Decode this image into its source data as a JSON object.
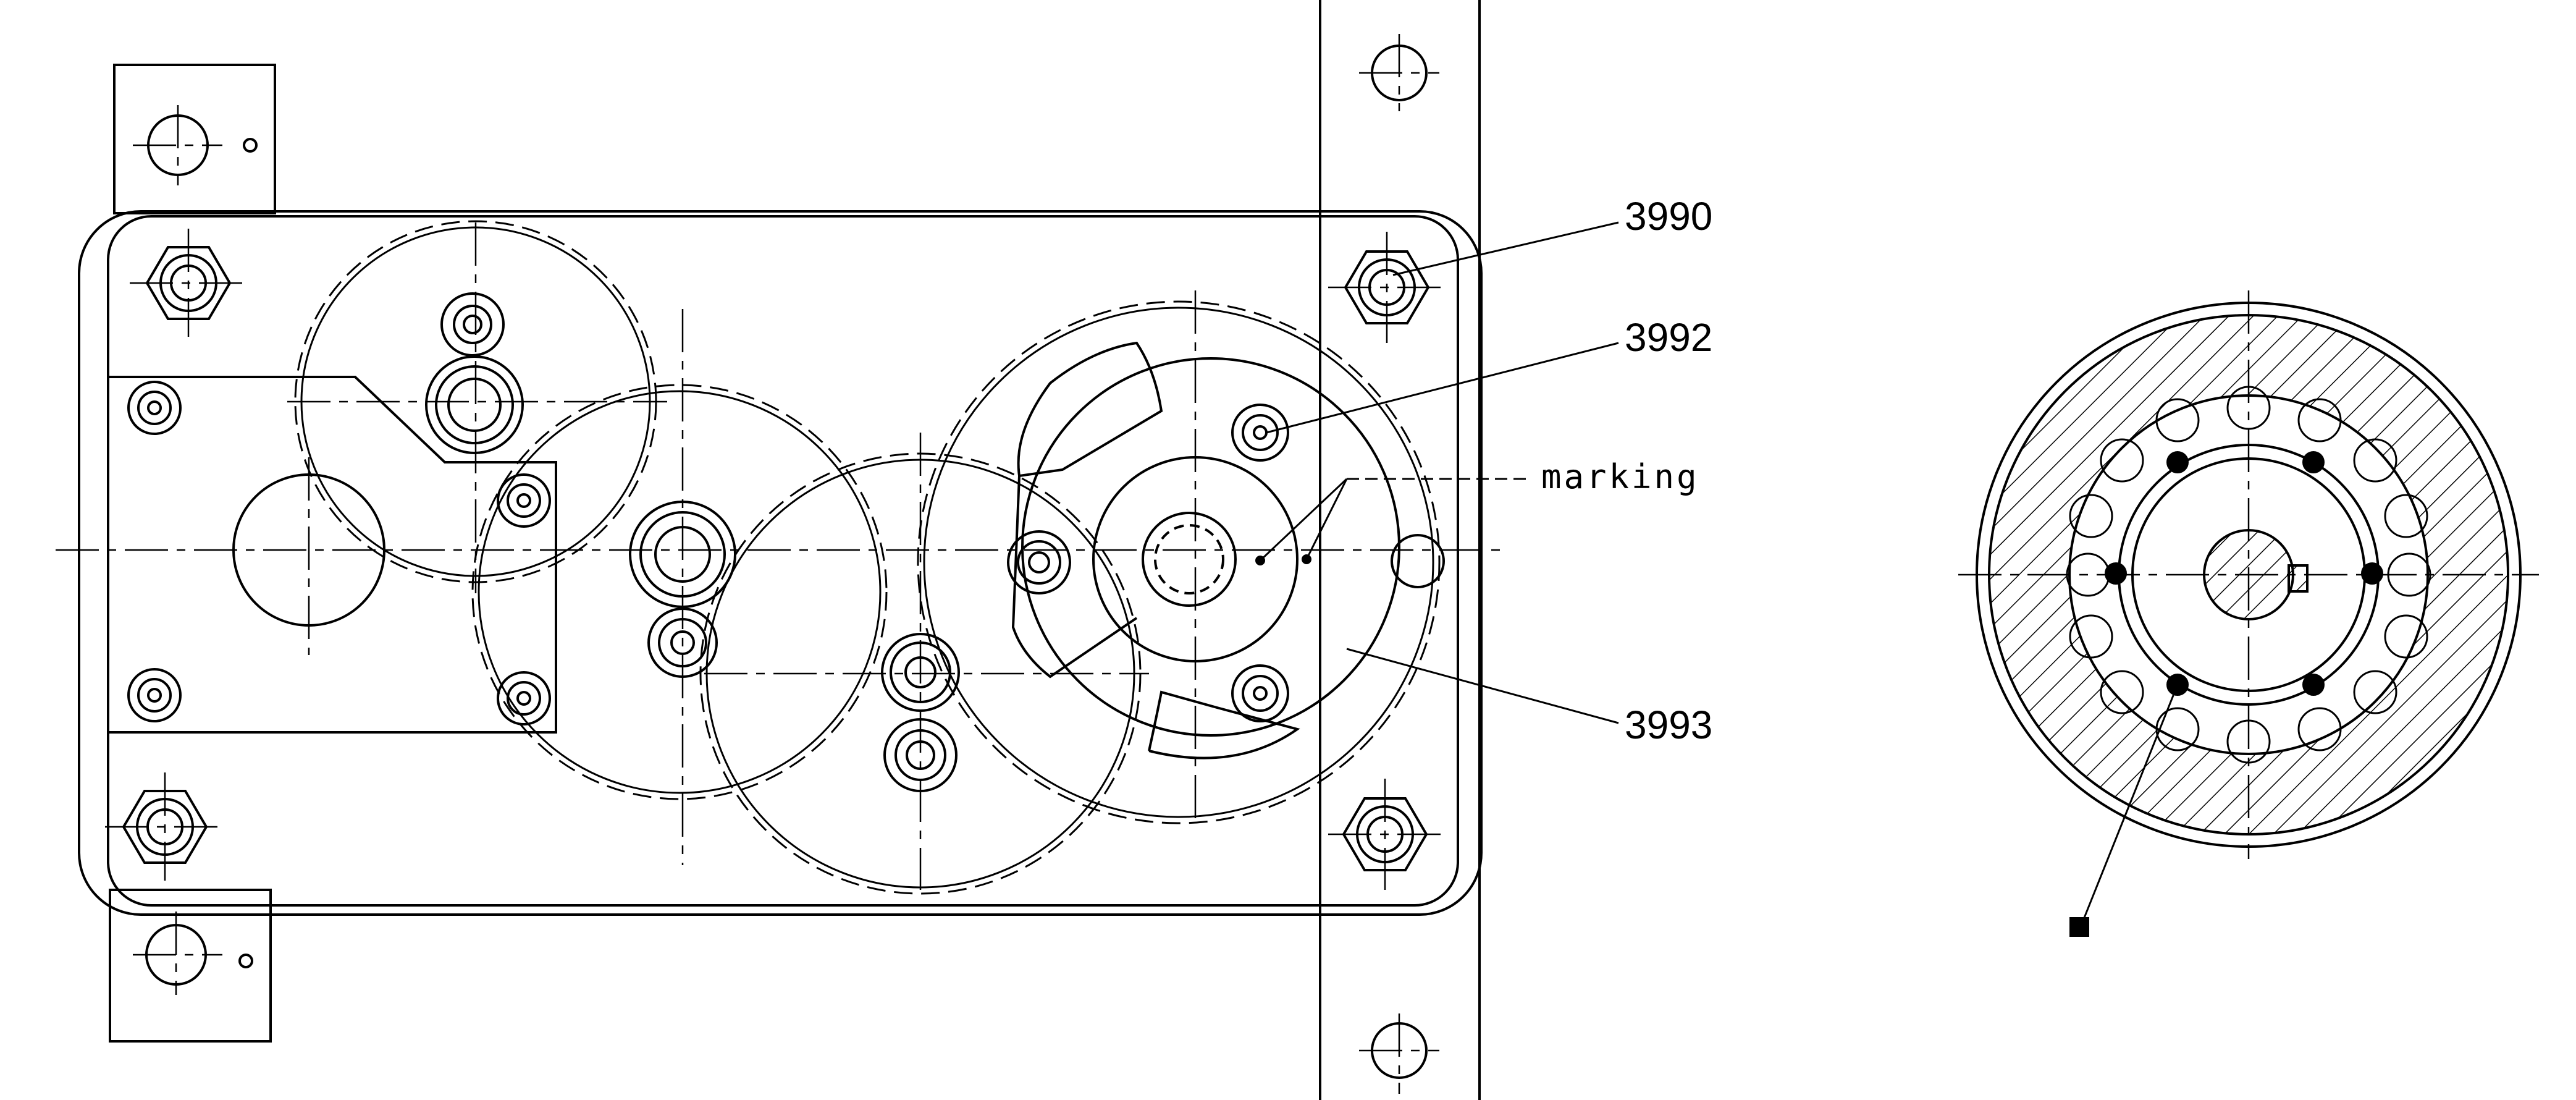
{
  "callouts": {
    "part_3990": "3990",
    "part_3992": "3992",
    "marking": "marking",
    "part_3993": "3993"
  },
  "colors": {
    "ink": "#000000",
    "paper": "#ffffff",
    "hatch": "#000000"
  }
}
